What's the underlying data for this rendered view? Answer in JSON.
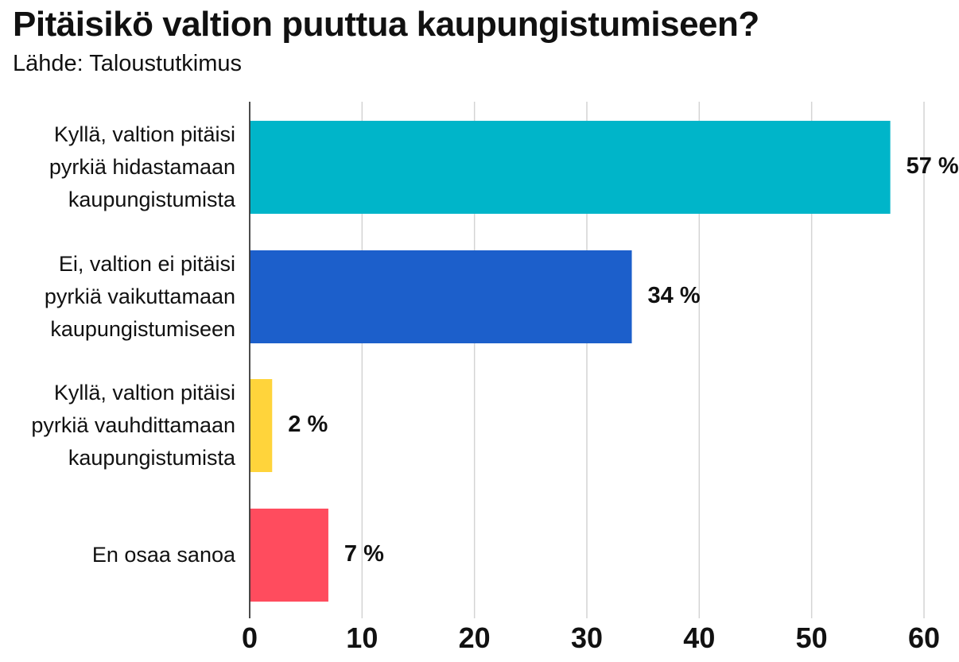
{
  "chart_data": {
    "type": "bar",
    "orientation": "horizontal",
    "title": "Pitäisikö valtion puuttua kaupungistumiseen?",
    "subtitle": "Lähde: Taloustutkimus",
    "categories": [
      [
        "Kyllä, valtion pitäisi",
        "pyrkiä hidastamaan",
        "kaupungistumista"
      ],
      [
        "Ei, valtion ei pitäisi",
        "pyrkiä vaikuttamaan",
        "kaupungistumiseen"
      ],
      [
        "Kyllä, valtion pitäisi",
        "pyrkiä vauhdittamaan",
        "kaupungistumista"
      ],
      [
        "En osaa sanoa"
      ]
    ],
    "values": [
      57,
      34,
      2,
      7
    ],
    "value_labels": [
      "57 %",
      "34 %",
      "2 %",
      "7 %"
    ],
    "colors": [
      "#00b5c9",
      "#1c5fcb",
      "#ffd43b",
      "#ff4c5e"
    ],
    "xlim": [
      0,
      60
    ],
    "xticks": [
      0,
      10,
      20,
      30,
      40,
      50,
      60
    ],
    "grid": true,
    "legend": "none"
  }
}
